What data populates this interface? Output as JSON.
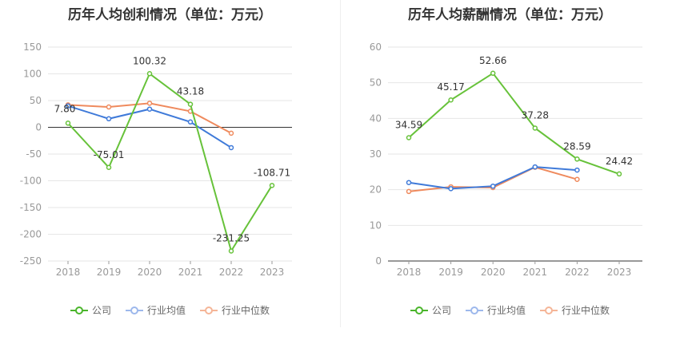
{
  "legend": {
    "company": "公司",
    "industry_avg": "行业均值",
    "industry_median": "行业中位数"
  },
  "colors": {
    "company": "#67c23a",
    "industry_avg": "#3f7ad9",
    "industry_median": "#ef8a5d",
    "company_legend": "#4ab52b",
    "avg_legend": "#9db8ec",
    "median_legend": "#f5b597"
  },
  "chart_data": [
    {
      "type": "line",
      "title": "历年人均创利情况（单位：万元）",
      "categories": [
        "2018",
        "2019",
        "2020",
        "2021",
        "2022",
        "2023"
      ],
      "ylim": [
        -250,
        150
      ],
      "yticks": [
        150,
        100,
        50,
        0,
        -50,
        -100,
        -150,
        -200,
        -250
      ],
      "series": [
        {
          "name": "公司",
          "key": "company",
          "values": [
            7.8,
            -75.01,
            100.32,
            43.18,
            -231.25,
            -108.71
          ],
          "labels": [
            "7.80",
            "-75.01",
            "100.32",
            "43.18",
            "-231.25",
            "-108.71"
          ]
        },
        {
          "name": "行业均值",
          "key": "industry_avg",
          "values": [
            40,
            16,
            34,
            10,
            -38,
            null
          ]
        },
        {
          "name": "行业中位数",
          "key": "industry_median",
          "values": [
            42,
            38,
            45,
            30,
            -11,
            null
          ]
        }
      ]
    },
    {
      "type": "line",
      "title": "历年人均薪酬情况（单位：万元）",
      "categories": [
        "2018",
        "2019",
        "2020",
        "2021",
        "2022",
        "2023"
      ],
      "ylim": [
        0,
        60
      ],
      "yticks": [
        60,
        50,
        40,
        30,
        20,
        10,
        0
      ],
      "series": [
        {
          "name": "公司",
          "key": "company",
          "values": [
            34.59,
            45.17,
            52.66,
            37.28,
            28.59,
            24.42
          ],
          "labels": [
            "34.59",
            "45.17",
            "52.66",
            "37.28",
            "28.59",
            "24.42"
          ]
        },
        {
          "name": "行业均值",
          "key": "industry_avg",
          "values": [
            22.0,
            20.3,
            21.0,
            26.4,
            25.5,
            null
          ]
        },
        {
          "name": "行业中位数",
          "key": "industry_median",
          "values": [
            19.5,
            20.8,
            20.6,
            26.3,
            22.9,
            null
          ]
        }
      ]
    }
  ]
}
